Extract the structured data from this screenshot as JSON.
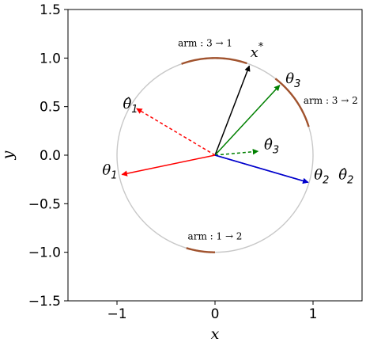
{
  "chart_data": {
    "type": "line",
    "title": "",
    "xlabel": "x",
    "ylabel": "y",
    "xlim": [
      -1.5,
      1.5
    ],
    "ylim": [
      -1.5,
      1.5
    ],
    "xticks": [
      {
        "value": -1,
        "label": "−1"
      },
      {
        "value": 0,
        "label": "0"
      },
      {
        "value": 1,
        "label": "1"
      }
    ],
    "yticks": [
      {
        "value": 1.5,
        "label": "1.5"
      },
      {
        "value": 1.0,
        "label": "1.0"
      },
      {
        "value": 0.5,
        "label": "0.5"
      },
      {
        "value": 0.0,
        "label": "0.0"
      },
      {
        "value": -0.5,
        "label": "−0.5"
      },
      {
        "value": -1.0,
        "label": "−1.0"
      },
      {
        "value": -1.5,
        "label": "−1.5"
      }
    ],
    "grid": false,
    "unit_circle": {
      "radius": 1,
      "color": "#c8c8c8"
    },
    "vectors": [
      {
        "id": "x-star",
        "x": 0.35,
        "y": 0.92,
        "color": "#000000",
        "dashed": false,
        "label": {
          "sym": "x",
          "sub": "",
          "sup": "*",
          "x": 0.36,
          "y": 1.01
        }
      },
      {
        "id": "theta3",
        "x": 0.66,
        "y": 0.72,
        "color": "#008000",
        "dashed": false,
        "label": {
          "sym": "θ",
          "sub": "3",
          "sup": "",
          "x": 0.72,
          "y": 0.74
        }
      },
      {
        "id": "theta3-hat",
        "x": 0.44,
        "y": 0.04,
        "color": "#008000",
        "dashed": true,
        "label": {
          "sym": "θ̂",
          "sub": "3",
          "sup": "",
          "x": 0.5,
          "y": 0.06
        }
      },
      {
        "id": "theta1-hat",
        "x": -0.8,
        "y": 0.48,
        "color": "#ff0000",
        "dashed": true,
        "label": {
          "sym": "θ̂",
          "sub": "1",
          "sup": "",
          "x": -0.94,
          "y": 0.48
        }
      },
      {
        "id": "theta1",
        "x": -0.95,
        "y": -0.2,
        "color": "#ff0000",
        "dashed": false,
        "label": {
          "sym": "θ",
          "sub": "1",
          "sup": "",
          "x": -1.15,
          "y": -0.2
        }
      },
      {
        "id": "theta2",
        "x": 0.95,
        "y": -0.28,
        "color": "#0000cc",
        "dashed": false,
        "label": {
          "sym": "θ",
          "sub": "2",
          "sup": "",
          "x": 1.01,
          "y": -0.25
        }
      },
      {
        "id": "theta2-hat",
        "x": 0.95,
        "y": -0.28,
        "color": "#0000cc",
        "dashed": false,
        "label": {
          "sym": "θ̂",
          "sub": "2",
          "sup": "",
          "x": 1.26,
          "y": -0.25
        }
      }
    ],
    "arcs": [
      {
        "id": "arm-3-1",
        "start_deg": 71,
        "end_deg": 110,
        "color": "#a0522d",
        "label": {
          "text": "arm : 3 → 1",
          "x": -0.1,
          "y": 1.12
        }
      },
      {
        "id": "arm-3-2",
        "start_deg": 17,
        "end_deg": 52,
        "color": "#a0522d",
        "label": {
          "text": "arm : 3 → 2",
          "x": 1.18,
          "y": 0.53
        }
      },
      {
        "id": "arm-1-2",
        "start_deg": 253,
        "end_deg": 270,
        "color": "#a0522d",
        "label": {
          "text": "arm : 1 → 2",
          "x": 0.0,
          "y": -0.87
        }
      }
    ]
  }
}
